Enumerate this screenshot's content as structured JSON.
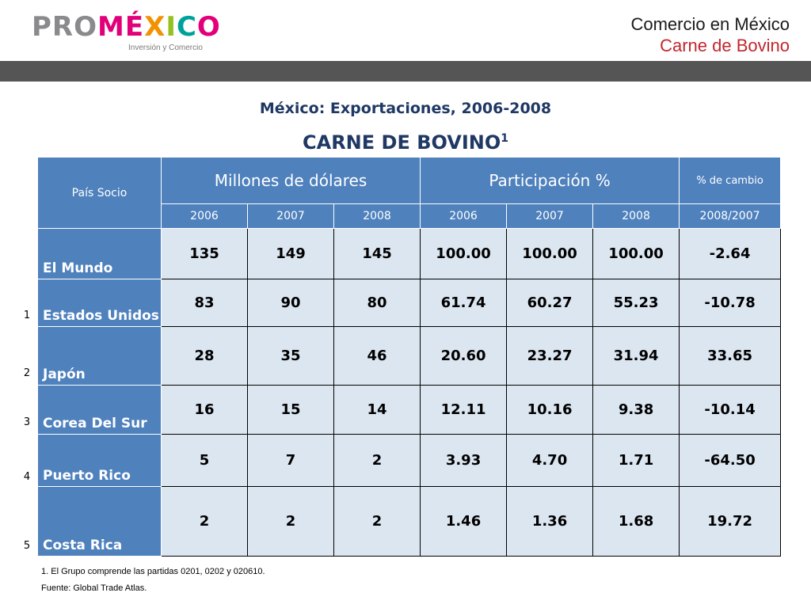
{
  "brand": {
    "logo_pro": "PRO",
    "logo_mexico_letters": [
      "M",
      "É",
      "X",
      "I",
      "C",
      "O"
    ],
    "logo_mexico_colors": [
      "#e2007a",
      "#e2007a",
      "#f39200",
      "#95c11f",
      "#00a19a",
      "#e2007a"
    ],
    "logo_sub": "Inversión y Comercio"
  },
  "header": {
    "line1": "Comercio en México",
    "line2": "Carne de Bovino"
  },
  "document": {
    "subtitle": "México: Exportaciones, 2006-2008",
    "title": "CARNE DE BOVINO",
    "title_sup": "1"
  },
  "table": {
    "col_partner": "País Socio",
    "group_usd": "Millones de dólares",
    "group_share": "Participación %",
    "group_change": "% de cambio",
    "years": [
      "2006",
      "2007",
      "2008"
    ],
    "change_period": "2008/2007",
    "rows": [
      {
        "rank": "",
        "country": "El Mundo",
        "usd": [
          "135",
          "149",
          "145"
        ],
        "share": [
          "100.00",
          "100.00",
          "100.00"
        ],
        "change": "-2.64"
      },
      {
        "rank": "1",
        "country": "Estados Unidos",
        "usd": [
          "83",
          "90",
          "80"
        ],
        "share": [
          "61.74",
          "60.27",
          "55.23"
        ],
        "change": "-10.78"
      },
      {
        "rank": "2",
        "country": "Japón",
        "usd": [
          "28",
          "35",
          "46"
        ],
        "share": [
          "20.60",
          "23.27",
          "31.94"
        ],
        "change": "33.65"
      },
      {
        "rank": "3",
        "country": "Corea Del Sur",
        "usd": [
          "16",
          "15",
          "14"
        ],
        "share": [
          "12.11",
          "10.16",
          "9.38"
        ],
        "change": "-10.14"
      },
      {
        "rank": "4",
        "country": "Puerto Rico",
        "usd": [
          "5",
          "7",
          "2"
        ],
        "share": [
          "3.93",
          "4.70",
          "1.71"
        ],
        "change": "-64.50"
      },
      {
        "rank": "5",
        "country": "Costa Rica",
        "usd": [
          "2",
          "2",
          "2"
        ],
        "share": [
          "1.46",
          "1.36",
          "1.68"
        ],
        "change": "19.72"
      }
    ]
  },
  "footnotes": {
    "note": "1. El Grupo comprende las partidas 0201, 0202 y 020610.",
    "source": "Fuente: Global Trade Atlas."
  }
}
